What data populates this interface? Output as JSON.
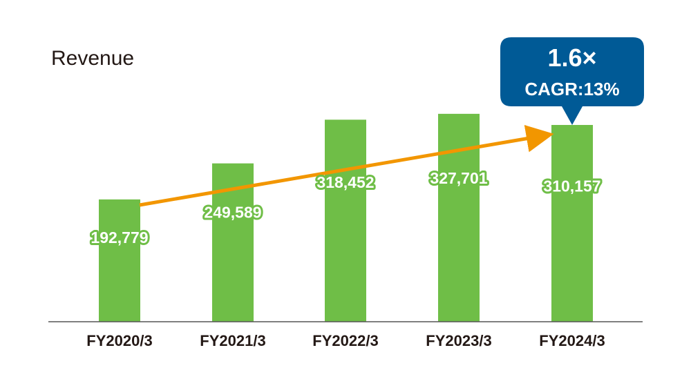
{
  "chart_data": {
    "type": "bar",
    "title": "Revenue",
    "categories": [
      "FY2020/3",
      "FY2021/3",
      "FY2022/3",
      "FY2023/3",
      "FY2024/3"
    ],
    "values": [
      192779,
      249589,
      318452,
      327701,
      310157
    ],
    "value_labels": [
      "192,779",
      "249,589",
      "318,452",
      "327,701",
      "310,157"
    ],
    "ylim": [
      0,
      370000
    ],
    "grid": false,
    "bar_color": "#6fbe47",
    "arrow_color": "#f29600",
    "annotation": {
      "multiplier": "1.6×",
      "cagr": "CAGR:13%",
      "color": "#005a96"
    }
  }
}
